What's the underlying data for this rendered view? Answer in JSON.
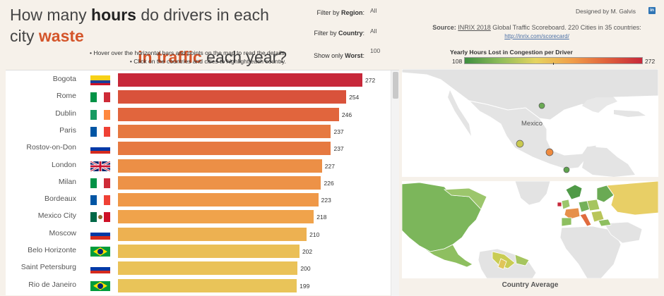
{
  "title": {
    "part1": "How many ",
    "bold1": "hours",
    "part2": " do drivers in each city ",
    "accent1": "waste",
    "accent2": "in traffic",
    "part3": " each year?"
  },
  "hints": [
    "• Hover over the horizontal bars and points on the map to read the details.",
    "• Click on the countries and cities to highlight each country."
  ],
  "filters": {
    "region_label": "Filter by ",
    "region_bold": "Region",
    "region_value": "All",
    "country_label": "Filter by ",
    "country_bold": "Country",
    "country_value": "All",
    "worst_label": "Show only ",
    "worst_bold": "Worst",
    "worst_value": "100"
  },
  "designer": "Designed by M. Galvis",
  "linkedin_icon": "linkedin-icon",
  "source": {
    "label": "Source: ",
    "link_text": "INRIX 2018",
    "text": " Global Traffic Scoreboard. 220 Cities in 35 countries: ",
    "url_text": "http://inrix.com/scorecard/"
  },
  "legend": {
    "title": "Yearly Hours Lost in Congestion per Driver",
    "min": "108",
    "max": "272"
  },
  "map": {
    "top_label": "Mexico",
    "bottom_caption": "Country Average"
  },
  "chart_data": {
    "type": "bar",
    "orientation": "horizontal",
    "title": "How many hours do drivers in each city waste in traffic each year?",
    "categories": [
      "Bogota",
      "Rome",
      "Dublin",
      "Paris",
      "Rostov-on-Don",
      "London",
      "Milan",
      "Bordeaux",
      "Mexico City",
      "Moscow",
      "Belo Horizonte",
      "Saint Petersburg",
      "Rio de Janeiro"
    ],
    "values": [
      272,
      254,
      246,
      237,
      237,
      227,
      226,
      223,
      218,
      210,
      202,
      200,
      199
    ],
    "flags": [
      "colombia",
      "italy",
      "ireland",
      "france",
      "russia",
      "uk",
      "italy",
      "france",
      "mexico",
      "russia",
      "brazil",
      "russia",
      "brazil"
    ],
    "color_scale": {
      "min": 108,
      "max": 272
    },
    "xlim": [
      0,
      272
    ]
  }
}
